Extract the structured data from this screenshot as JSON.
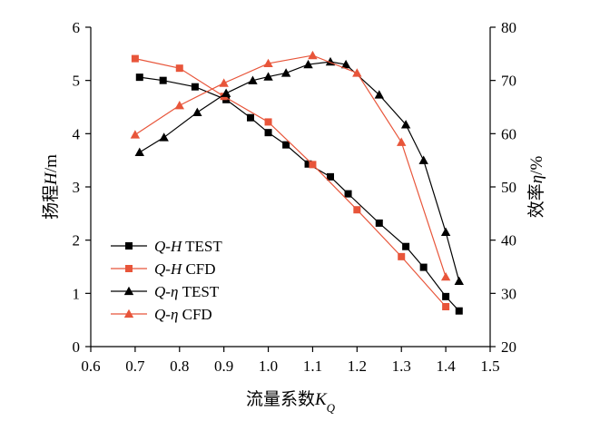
{
  "chart_data": {
    "type": "line",
    "x_label": {
      "cn": "流量系数",
      "sym": "K",
      "sub": "Q"
    },
    "y_left_label": {
      "cn": "扬程",
      "sym": "H",
      "unit": "/m"
    },
    "y_right_label": {
      "cn": "效率",
      "sym": "η",
      "unit": "/%"
    },
    "x_range": [
      0.6,
      1.5
    ],
    "y_left_range": [
      0,
      6
    ],
    "y_right_range": [
      20,
      80
    ],
    "x_ticks": [
      "0.6",
      "0.7",
      "0.8",
      "0.9",
      "1.0",
      "1.1",
      "1.2",
      "1.3",
      "1.4",
      "1.5"
    ],
    "y_left_ticks": [
      "0",
      "1",
      "2",
      "3",
      "4",
      "5",
      "6"
    ],
    "y_right_ticks": [
      "20",
      "30",
      "40",
      "50",
      "60",
      "70",
      "80"
    ],
    "series": [
      {
        "name": "Q-H TEST",
        "legend_sym": "Q-H",
        "legend_tag": "TEST",
        "axis": "left",
        "color": "#000000",
        "marker": "square",
        "x": [
          0.71,
          0.763,
          0.835,
          0.905,
          0.96,
          1.0,
          1.04,
          1.09,
          1.14,
          1.18,
          1.25,
          1.31,
          1.35,
          1.4,
          1.43
        ],
        "y": [
          5.06,
          5.0,
          4.88,
          4.64,
          4.3,
          4.02,
          3.79,
          3.43,
          3.19,
          2.87,
          2.32,
          1.88,
          1.49,
          0.94,
          0.67
        ]
      },
      {
        "name": "Q-H CFD",
        "legend_sym": "Q-H",
        "legend_tag": "CFD",
        "axis": "left",
        "color": "#e8553a",
        "marker": "square",
        "x": [
          0.7,
          0.8,
          0.9,
          1.0,
          1.1,
          1.2,
          1.3,
          1.4
        ],
        "y": [
          5.41,
          5.23,
          4.7,
          4.22,
          3.42,
          2.57,
          1.69,
          0.75
        ]
      },
      {
        "name": "Q-η TEST",
        "legend_sym": "Q-η",
        "legend_tag": "TEST",
        "axis": "right",
        "color": "#000000",
        "marker": "triangle",
        "x": [
          0.71,
          0.765,
          0.84,
          0.905,
          0.965,
          1.0,
          1.04,
          1.09,
          1.14,
          1.175,
          1.25,
          1.31,
          1.35,
          1.4,
          1.43
        ],
        "y": [
          56.5,
          59.3,
          64.0,
          67.6,
          70.0,
          70.7,
          71.4,
          73.0,
          73.5,
          73.0,
          67.3,
          61.7,
          55.0,
          41.5,
          32.3
        ]
      },
      {
        "name": "Q-η CFD",
        "legend_sym": "Q-η",
        "legend_tag": "CFD",
        "axis": "right",
        "color": "#e8553a",
        "marker": "triangle",
        "x": [
          0.7,
          0.8,
          0.9,
          1.0,
          1.1,
          1.2,
          1.3,
          1.4
        ],
        "y": [
          59.8,
          65.3,
          69.5,
          73.2,
          74.7,
          71.4,
          58.4,
          33.1
        ]
      }
    ],
    "legend_position": "bottom-left"
  }
}
